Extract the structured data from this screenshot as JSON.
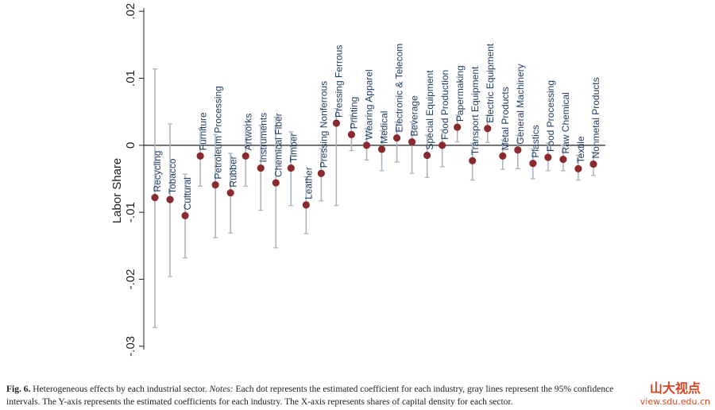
{
  "chart_data": {
    "type": "errorbar",
    "y_label": "Labor Share",
    "ylim": [
      -0.0305,
      0.0205
    ],
    "yticks": [
      {
        "value": 0.02,
        "label": ".02"
      },
      {
        "value": 0.01,
        "label": ".01"
      },
      0,
      {
        "value": -0.01,
        "label": "-.01"
      },
      {
        "value": -0.02,
        "label": "-.02"
      },
      {
        "value": -0.03,
        "label": "-.03"
      }
    ],
    "zero_line": true,
    "categories": [
      "Recycling",
      "Tobacco",
      "Cultural",
      "Furniture",
      "Petroleum Processing",
      "Rubber",
      "Artworks",
      "Instruments",
      "Chemical Fiber",
      "Timber",
      "Leather",
      "Pressing Nonferrous",
      "Pressing Ferrous",
      "Printing",
      "Wearing Apparel",
      "Medical",
      "Electronic & Telecom",
      "Beverage",
      "Special Equipment",
      "Food Production",
      "Papermaking",
      "Transport Equipment",
      "Electric Equipment",
      "Metal Products",
      "General Machinery",
      "Plastics",
      "Food Processing",
      "Raw Chemical",
      "Textile",
      "Nonmetal Products"
    ],
    "series": [
      {
        "color": "#8b2a2e",
        "ci_color": "#a3b3bf",
        "values": [
          -0.0078,
          -0.0081,
          -0.0105,
          -0.0016,
          -0.0059,
          -0.0071,
          -0.0016,
          -0.0034,
          -0.0056,
          -0.0034,
          -0.0089,
          -0.0042,
          0.0033,
          0.0016,
          0.0,
          -0.0006,
          0.0011,
          0.0005,
          -0.0015,
          0.0,
          0.0027,
          -0.0023,
          0.0025,
          -0.0016,
          -0.0007,
          -0.0027,
          -0.0018,
          -0.0021,
          -0.0035,
          -0.0028
        ],
        "lower": [
          -0.0272,
          -0.0196,
          -0.0168,
          -0.0061,
          -0.0138,
          -0.0131,
          -0.0061,
          -0.0097,
          -0.0153,
          -0.009,
          -0.0132,
          -0.0083,
          -0.009,
          -0.0008,
          -0.0022,
          -0.0038,
          -0.0025,
          -0.0042,
          -0.0048,
          -0.0032,
          0.0005,
          -0.0052,
          0.0004,
          -0.0036,
          -0.0035,
          -0.005,
          -0.0038,
          -0.0038,
          -0.0052,
          -0.0045
        ],
        "upper": [
          0.0114,
          0.0032,
          -0.0043,
          0.0025,
          0.0016,
          -0.0012,
          0.003,
          0.003,
          0.0042,
          0.002,
          -0.0047,
          -0.0005,
          0.0055,
          0.0045,
          0.0025,
          0.0022,
          0.0035,
          0.0035,
          0.0015,
          0.0023,
          0.0045,
          0.0003,
          0.0045,
          0.0008,
          0.0015,
          -0.0005,
          0.0003,
          0.0,
          -0.0015,
          -0.001
        ]
      }
    ]
  },
  "caption": {
    "label": "Fig. 6.",
    "title": "Heterogeneous effects by each industrial sector.",
    "notes_label": "Notes:",
    "line1": "Each dot represents the estimated coefficient for each industry, gray lines represent the 95% confidence",
    "line2": "intervals. The Y-axis represents the estimated coefficients for each industry. The X-axis represents shares of capital density for each sector."
  },
  "watermark": {
    "name": "山大视点",
    "url": "view.sdu.edu.cn"
  }
}
